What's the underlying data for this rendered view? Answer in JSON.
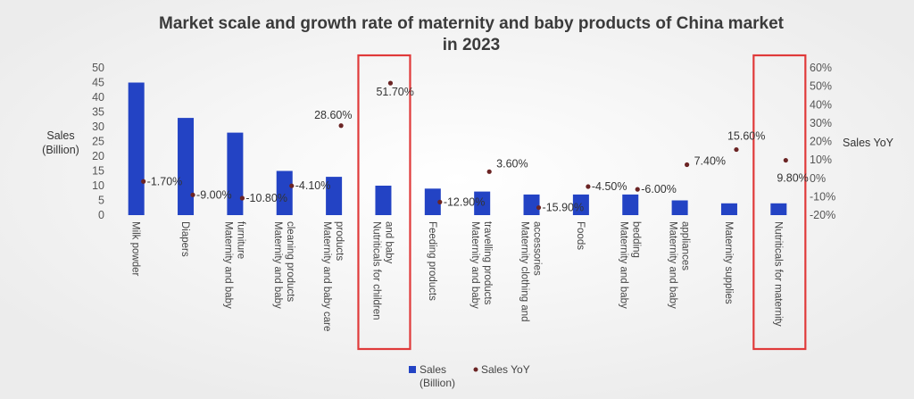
{
  "chart_data": {
    "type": "bar",
    "title": [
      "Market scale and growth rate of maternity and baby products of China market",
      "in 2023"
    ],
    "y_left_label": [
      "Sales",
      "(Billion)"
    ],
    "y_right_label": "Sales YoY",
    "y_left_ticks": [
      "0",
      "5",
      "10",
      "15",
      "20",
      "25",
      "30",
      "35",
      "40",
      "45",
      "50"
    ],
    "y_right_ticks": [
      "-20%",
      "-10%",
      "0%",
      "10%",
      "20%",
      "30%",
      "40%",
      "50%",
      "60%"
    ],
    "ylim_left": [
      0,
      50
    ],
    "ylim_right": [
      -20,
      60
    ],
    "categories": [
      [
        "Milk powder"
      ],
      [
        "Diapers"
      ],
      [
        "Maternity and baby",
        "furniture"
      ],
      [
        "Maternity and baby",
        "cleaning products"
      ],
      [
        "Maternity and baby care",
        "products"
      ],
      [
        "Nutriticals for children",
        "and baby"
      ],
      [
        "Feeding products"
      ],
      [
        "Maternity and baby",
        "travelling products"
      ],
      [
        "Maternity clothing and",
        "accessories"
      ],
      [
        "Foods"
      ],
      [
        "Maternity and baby",
        "bedding"
      ],
      [
        "Maternity and baby",
        "appliances"
      ],
      [
        "Maternity supplies"
      ],
      [
        "Nutriticals for maternity"
      ]
    ],
    "series": [
      {
        "name": "Sales (Billion)",
        "legend_lines": [
          "Sales",
          "(Billion)"
        ],
        "kind": "bar",
        "axis": "left",
        "color": "#2343c4",
        "values": [
          45,
          33,
          28,
          15,
          13,
          10,
          9,
          8,
          7,
          7,
          7,
          5,
          4,
          4
        ]
      },
      {
        "name": "Sales YoY",
        "legend_lines": [
          "Sales YoY"
        ],
        "kind": "scatter",
        "axis": "right",
        "color": "#6b2424",
        "values": [
          -1.7,
          -9.0,
          -10.8,
          -4.1,
          28.6,
          51.7,
          -12.9,
          3.6,
          -15.9,
          -4.5,
          -6.0,
          7.4,
          15.6,
          9.8
        ],
        "labels": [
          "-1.70%",
          "-9.00%",
          "-10.80%",
          "-4.10%",
          "28.60%",
          "51.70%",
          "-12.90%",
          "3.60%",
          "-15.90%",
          "-4.50%",
          "-6.00%",
          "7.40%",
          "15.60%",
          "9.80%"
        ]
      }
    ],
    "highlighted_categories": [
      5,
      13
    ],
    "highlight_color": "#e03a3a",
    "legend_position": "bottom",
    "grid": false
  }
}
